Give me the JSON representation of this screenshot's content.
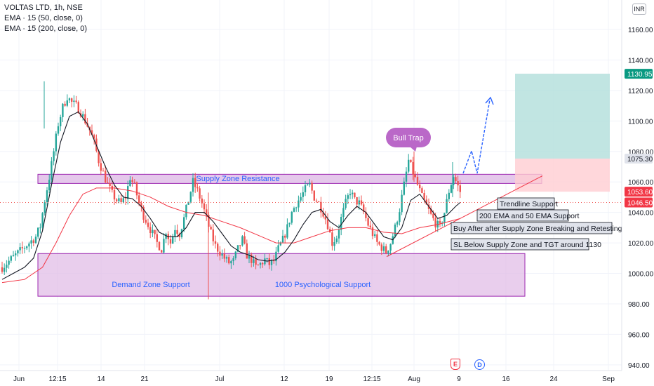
{
  "legend": {
    "title": "VOLTAS LTD, 1h, NSE",
    "ema50": "EMA · 15 (50, close, 0)",
    "ema200": "EMA · 15 (200, close, 0)"
  },
  "currency": "INR",
  "events": {
    "earnings": "E",
    "dividend": "D"
  },
  "colors": {
    "up": "#26a69a",
    "down": "#ef5350",
    "ema50": "#131722",
    "ema200": "#f23645",
    "zone_fill": "#e1bee7",
    "zone_border": "#9c27b0",
    "annotation_text": "#2962ff",
    "target_fill": "#b2dfdb",
    "stop_fill": "#ffcdd2",
    "arrow": "#2962ff",
    "bull_trap_bubble": "#ba68c8",
    "price_badge": "#f23645",
    "target_badge": "#089981",
    "trendline": "#f23645"
  },
  "chart_data": {
    "type": "candlestick",
    "title": "VOLTAS LTD, 1h, NSE",
    "ylim": [
      936,
      1170
    ],
    "y_ticks": [
      940,
      960,
      980,
      1000,
      1020,
      1040,
      1060,
      1080,
      1100,
      1120,
      1140,
      1160
    ],
    "x_ticks": [
      "Jun",
      "12:15",
      "14",
      "21",
      "Jul",
      "12",
      "19",
      "12:15",
      "Aug",
      "9",
      "16",
      "24",
      "Sep"
    ],
    "price_labels": [
      {
        "value": 1130.95,
        "text": "1130.95",
        "role": "target"
      },
      {
        "value": 1075.3,
        "text": "1075.30",
        "role": "entry"
      },
      {
        "value": 1053.6,
        "text": "1053.60",
        "role": "last"
      },
      {
        "value": 1046.5,
        "text": "1046.50",
        "role": "stop"
      }
    ],
    "close_path": [
      [
        0,
        1004
      ],
      [
        3,
        1008
      ],
      [
        6,
        1012
      ],
      [
        9,
        1016
      ],
      [
        12,
        1020
      ],
      [
        15,
        1024
      ],
      [
        17,
        1031
      ],
      [
        19,
        1048
      ],
      [
        21,
        1063
      ],
      [
        23,
        1080
      ],
      [
        25,
        1098
      ],
      [
        27,
        1109
      ],
      [
        29,
        1116
      ],
      [
        31,
        1112
      ],
      [
        33,
        1110
      ],
      [
        35,
        1106
      ],
      [
        37,
        1100
      ],
      [
        39,
        1094
      ],
      [
        41,
        1086
      ],
      [
        43,
        1074
      ],
      [
        45,
        1066
      ],
      [
        47,
        1058
      ],
      [
        49,
        1052
      ],
      [
        51,
        1048
      ],
      [
        53,
        1046
      ],
      [
        55,
        1050
      ],
      [
        57,
        1063
      ],
      [
        59,
        1057
      ],
      [
        61,
        1046
      ],
      [
        63,
        1038
      ],
      [
        65,
        1032
      ],
      [
        67,
        1026
      ],
      [
        69,
        1020
      ],
      [
        71,
        1016
      ],
      [
        73,
        1028
      ],
      [
        75,
        1020
      ],
      [
        77,
        1030
      ],
      [
        79,
        1026
      ],
      [
        81,
        1036
      ],
      [
        83,
        1048
      ],
      [
        85,
        1060
      ],
      [
        87,
        1054
      ],
      [
        89,
        1046
      ],
      [
        91,
        1036
      ],
      [
        93,
        1026
      ],
      [
        95,
        1018
      ],
      [
        97,
        1014
      ],
      [
        99,
        1010
      ],
      [
        101,
        1007
      ],
      [
        103,
        1008
      ],
      [
        105,
        1016
      ],
      [
        107,
        1022
      ],
      [
        109,
        1012
      ],
      [
        111,
        1009
      ],
      [
        113,
        1004
      ],
      [
        115,
        1006
      ],
      [
        117,
        1009
      ],
      [
        119,
        1006
      ],
      [
        121,
        1008
      ],
      [
        123,
        1016
      ],
      [
        125,
        1022
      ],
      [
        127,
        1030
      ],
      [
        129,
        1040
      ],
      [
        131,
        1046
      ],
      [
        133,
        1050
      ],
      [
        135,
        1055
      ],
      [
        137,
        1058
      ],
      [
        139,
        1050
      ],
      [
        141,
        1046
      ],
      [
        143,
        1040
      ],
      [
        145,
        1032
      ],
      [
        147,
        1020
      ],
      [
        149,
        1024
      ],
      [
        151,
        1036
      ],
      [
        153,
        1046
      ],
      [
        155,
        1054
      ],
      [
        157,
        1048
      ],
      [
        159,
        1046
      ],
      [
        161,
        1040
      ],
      [
        163,
        1032
      ],
      [
        165,
        1026
      ],
      [
        167,
        1020
      ],
      [
        169,
        1017
      ],
      [
        171,
        1014
      ],
      [
        173,
        1020
      ],
      [
        175,
        1030
      ],
      [
        177,
        1042
      ],
      [
        179,
        1058
      ],
      [
        181,
        1074
      ],
      [
        183,
        1066
      ],
      [
        185,
        1058
      ],
      [
        187,
        1050
      ],
      [
        189,
        1044
      ],
      [
        191,
        1038
      ],
      [
        193,
        1033
      ],
      [
        195,
        1030
      ],
      [
        197,
        1040
      ],
      [
        199,
        1054
      ],
      [
        201,
        1064
      ],
      [
        203,
        1057
      ],
      [
        204,
        1053.6
      ]
    ],
    "ema50": [
      [
        0,
        996
      ],
      [
        5,
        1000
      ],
      [
        10,
        1004
      ],
      [
        14,
        1010
      ],
      [
        18,
        1028
      ],
      [
        22,
        1058
      ],
      [
        26,
        1086
      ],
      [
        30,
        1103
      ],
      [
        34,
        1106
      ],
      [
        38,
        1098
      ],
      [
        42,
        1084
      ],
      [
        46,
        1070
      ],
      [
        50,
        1058
      ],
      [
        54,
        1050
      ],
      [
        58,
        1049
      ],
      [
        62,
        1044
      ],
      [
        66,
        1036
      ],
      [
        70,
        1027
      ],
      [
        74,
        1024
      ],
      [
        78,
        1024
      ],
      [
        82,
        1030
      ],
      [
        86,
        1040
      ],
      [
        90,
        1040
      ],
      [
        94,
        1034
      ],
      [
        98,
        1026
      ],
      [
        102,
        1018
      ],
      [
        106,
        1014
      ],
      [
        110,
        1012
      ],
      [
        114,
        1009
      ],
      [
        118,
        1008
      ],
      [
        122,
        1009
      ],
      [
        126,
        1014
      ],
      [
        130,
        1022
      ],
      [
        134,
        1032
      ],
      [
        138,
        1040
      ],
      [
        142,
        1042
      ],
      [
        146,
        1034
      ],
      [
        150,
        1030
      ],
      [
        154,
        1038
      ],
      [
        158,
        1044
      ],
      [
        162,
        1040
      ],
      [
        166,
        1032
      ],
      [
        170,
        1024
      ],
      [
        174,
        1022
      ],
      [
        178,
        1030
      ],
      [
        182,
        1048
      ],
      [
        186,
        1052
      ],
      [
        190,
        1044
      ],
      [
        194,
        1036
      ],
      [
        198,
        1038
      ],
      [
        202,
        1044
      ],
      [
        204,
        1046.5
      ]
    ],
    "ema200": [
      [
        0,
        994
      ],
      [
        10,
        996
      ],
      [
        18,
        1004
      ],
      [
        24,
        1020
      ],
      [
        30,
        1038
      ],
      [
        36,
        1052
      ],
      [
        42,
        1056
      ],
      [
        50,
        1056
      ],
      [
        58,
        1054
      ],
      [
        66,
        1050
      ],
      [
        74,
        1044
      ],
      [
        82,
        1040
      ],
      [
        90,
        1038
      ],
      [
        98,
        1034
      ],
      [
        106,
        1030
      ],
      [
        114,
        1025
      ],
      [
        122,
        1020
      ],
      [
        130,
        1020
      ],
      [
        138,
        1024
      ],
      [
        146,
        1028
      ],
      [
        154,
        1030
      ],
      [
        162,
        1030
      ],
      [
        170,
        1027
      ],
      [
        178,
        1026
      ],
      [
        186,
        1030
      ],
      [
        194,
        1032
      ],
      [
        204,
        1036
      ]
    ]
  },
  "annotations": {
    "supply_zone": "Supply Zone Resistance",
    "demand_zone": "Demand Zone Support",
    "psych_support": "1000 Psychological Support",
    "bull_trap": "Bull Trap",
    "notes": [
      "Trendline Support",
      "200 EMA and 50 EMA Support",
      "Buy After after Supply Zone Breaking and Retesting",
      "SL Below Supply Zone and TGT around 1130"
    ]
  }
}
